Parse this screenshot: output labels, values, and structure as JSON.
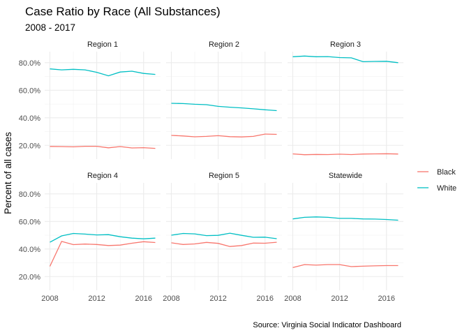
{
  "chart_data": {
    "type": "line",
    "title": "Case Ratio by Race (All Substances)",
    "subtitle": "2008 - 2017",
    "xlabel": "",
    "ylabel": "Percent of all cases",
    "caption": "Source: Virginia Social Indicator Dashboard",
    "x": [
      2008,
      2009,
      2010,
      2011,
      2012,
      2013,
      2014,
      2015,
      2016,
      2017
    ],
    "x_ticks": [
      2008,
      2012,
      2016
    ],
    "x_tick_labels": [
      "2008",
      "2012",
      "2016"
    ],
    "ylim": [
      0.1,
      0.88
    ],
    "y_ticks": [
      0.2,
      0.4,
      0.6,
      0.8
    ],
    "y_tick_labels": [
      "20.0%",
      "40.0%",
      "60.0%",
      "80.0%"
    ],
    "grid": true,
    "legend_position": "right",
    "legend": [
      {
        "name": "Black",
        "color": "#F8766D"
      },
      {
        "name": "White",
        "color": "#00BFC4"
      }
    ],
    "panels": [
      {
        "label": "Region 1",
        "series": [
          {
            "name": "Black",
            "values": [
              0.192,
              0.191,
              0.189,
              0.193,
              0.193,
              0.182,
              0.191,
              0.181,
              0.183,
              0.178
            ]
          },
          {
            "name": "White",
            "values": [
              0.755,
              0.748,
              0.752,
              0.748,
              0.73,
              0.705,
              0.732,
              0.738,
              0.722,
              0.715
            ]
          }
        ]
      },
      {
        "label": "Region 2",
        "series": [
          {
            "name": "Black",
            "values": [
              0.272,
              0.268,
              0.262,
              0.265,
              0.27,
              0.263,
              0.261,
              0.265,
              0.282,
              0.28
            ]
          },
          {
            "name": "White",
            "values": [
              0.505,
              0.503,
              0.498,
              0.495,
              0.483,
              0.477,
              0.472,
              0.465,
              0.458,
              0.452
            ]
          }
        ]
      },
      {
        "label": "Region 3",
        "series": [
          {
            "name": "Black",
            "values": [
              0.138,
              0.132,
              0.134,
              0.133,
              0.136,
              0.133,
              0.137,
              0.138,
              0.139,
              0.137
            ]
          },
          {
            "name": "White",
            "values": [
              0.843,
              0.848,
              0.843,
              0.844,
              0.837,
              0.835,
              0.807,
              0.809,
              0.81,
              0.8
            ]
          }
        ]
      },
      {
        "label": "Region 4",
        "series": [
          {
            "name": "Black",
            "values": [
              0.274,
              0.455,
              0.432,
              0.436,
              0.433,
              0.425,
              0.428,
              0.442,
              0.453,
              0.447
            ]
          },
          {
            "name": "White",
            "values": [
              0.449,
              0.495,
              0.513,
              0.508,
              0.502,
              0.504,
              0.489,
              0.479,
              0.474,
              0.479
            ]
          }
        ]
      },
      {
        "label": "Region 5",
        "series": [
          {
            "name": "Black",
            "values": [
              0.445,
              0.433,
              0.437,
              0.448,
              0.441,
              0.418,
              0.425,
              0.443,
              0.442,
              0.449
            ]
          },
          {
            "name": "White",
            "values": [
              0.5,
              0.513,
              0.51,
              0.497,
              0.499,
              0.515,
              0.499,
              0.485,
              0.486,
              0.475
            ]
          }
        ]
      },
      {
        "label": "Statewide",
        "series": [
          {
            "name": "Black",
            "values": [
              0.265,
              0.287,
              0.283,
              0.287,
              0.287,
              0.272,
              0.275,
              0.278,
              0.28,
              0.28
            ]
          },
          {
            "name": "White",
            "values": [
              0.618,
              0.63,
              0.633,
              0.63,
              0.622,
              0.622,
              0.618,
              0.617,
              0.614,
              0.609
            ]
          }
        ]
      }
    ]
  }
}
